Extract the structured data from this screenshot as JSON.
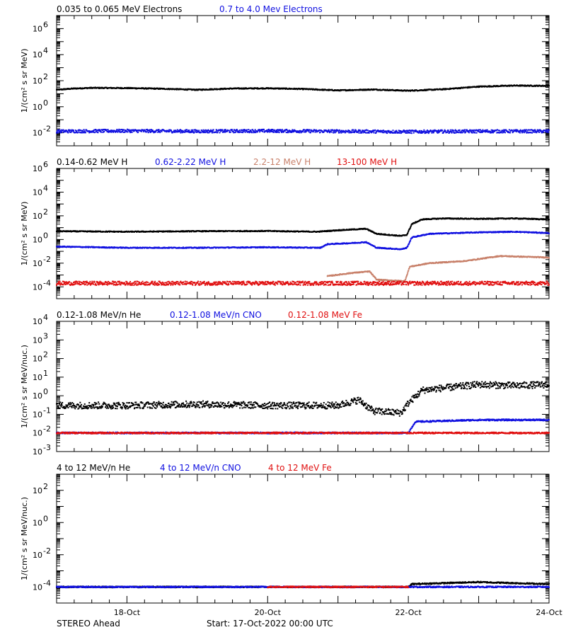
{
  "footer": {
    "spacecraft": "STEREO Ahead",
    "start": "Start: 17-Oct-2022 00:00 UTC"
  },
  "colors": {
    "black": "#000000",
    "blue": "#1010e0",
    "tan": "#c8806a",
    "red": "#e01010"
  },
  "chart_data": [
    {
      "type": "scatter",
      "panel": "electrons",
      "ylabel": "1/(cm² s sr MeV)",
      "ylog": true,
      "ylim": [
        0.001,
        10000000
      ],
      "yticks": [
        {
          "exp": "-2",
          "value": 0.01
        },
        {
          "exp": "0",
          "value": 1
        },
        {
          "exp": "2",
          "value": 100
        },
        {
          "exp": "4",
          "value": 10000
        },
        {
          "exp": "6",
          "value": 1000000
        }
      ],
      "xlim": [
        0,
        7
      ],
      "xticks": [
        {
          "label": "18-Oct",
          "value": 1
        },
        {
          "label": "20-Oct",
          "value": 3
        },
        {
          "label": "22-Oct",
          "value": 5
        },
        {
          "label": "24-Oct",
          "value": 7
        }
      ],
      "series": [
        {
          "name": "0.035 to 0.065 MeV Electrons",
          "color": "#000000",
          "points": [
            [
              0,
              20
            ],
            [
              0.25,
              25
            ],
            [
              0.5,
              28
            ],
            [
              1,
              27
            ],
            [
              1.5,
              24
            ],
            [
              2,
              20
            ],
            [
              2.5,
              25
            ],
            [
              3,
              26
            ],
            [
              3.5,
              23
            ],
            [
              4,
              18
            ],
            [
              4.5,
              21
            ],
            [
              5,
              17
            ],
            [
              5.5,
              22
            ],
            [
              6,
              35
            ],
            [
              6.5,
              42
            ],
            [
              7,
              40
            ]
          ]
        },
        {
          "name": "0.7 to 4.0 Mev Electrons",
          "color": "#1010e0",
          "points": [
            [
              0,
              0.013
            ],
            [
              1,
              0.014
            ],
            [
              2,
              0.013
            ],
            [
              3,
              0.014
            ],
            [
              4,
              0.013
            ],
            [
              5,
              0.012
            ],
            [
              6,
              0.013
            ],
            [
              7,
              0.013
            ]
          ]
        }
      ]
    },
    {
      "type": "scatter",
      "panel": "protons",
      "ylabel": "1/(cm² s sr MeV)",
      "ylog": true,
      "ylim": [
        1e-05,
        1000000
      ],
      "yticks": [
        {
          "exp": "-4",
          "value": 0.0001
        },
        {
          "exp": "-2",
          "value": 0.01
        },
        {
          "exp": "0",
          "value": 1
        },
        {
          "exp": "2",
          "value": 100
        },
        {
          "exp": "4",
          "value": 10000
        },
        {
          "exp": "6",
          "value": 1000000
        }
      ],
      "xlim": [
        0,
        7
      ],
      "xticks": [
        {
          "label": "18-Oct",
          "value": 1
        },
        {
          "label": "20-Oct",
          "value": 3
        },
        {
          "label": "22-Oct",
          "value": 5
        },
        {
          "label": "24-Oct",
          "value": 7
        }
      ],
      "series": [
        {
          "name": "0.14-0.62 MeV H",
          "color": "#000000",
          "points": [
            [
              0,
              5
            ],
            [
              1,
              4.5
            ],
            [
              2,
              5
            ],
            [
              3,
              5.2
            ],
            [
              3.7,
              4.5
            ],
            [
              4,
              6
            ],
            [
              4.4,
              8
            ],
            [
              4.55,
              3
            ],
            [
              4.9,
              2
            ],
            [
              4.98,
              2.5
            ],
            [
              5.05,
              20
            ],
            [
              5.2,
              50
            ],
            [
              5.5,
              60
            ],
            [
              6,
              55
            ],
            [
              6.5,
              60
            ],
            [
              7,
              50
            ]
          ]
        },
        {
          "name": "0.62-2.22 MeV H",
          "color": "#1010e0",
          "points": [
            [
              0,
              0.25
            ],
            [
              1,
              0.2
            ],
            [
              2,
              0.2
            ],
            [
              3,
              0.22
            ],
            [
              3.75,
              0.2
            ],
            [
              3.85,
              0.4
            ],
            [
              4.2,
              0.5
            ],
            [
              4.4,
              0.6
            ],
            [
              4.55,
              0.2
            ],
            [
              4.9,
              0.15
            ],
            [
              4.98,
              0.2
            ],
            [
              5.05,
              1.5
            ],
            [
              5.3,
              3
            ],
            [
              6,
              4
            ],
            [
              6.5,
              4.5
            ],
            [
              7,
              3.5
            ]
          ]
        },
        {
          "name": "2.2-12 MeV H",
          "color": "#c8806a",
          "points": [
            [
              3.85,
              0.0008
            ],
            [
              4.2,
              0.0015
            ],
            [
              4.45,
              0.002
            ],
            [
              4.55,
              0.0004
            ],
            [
              4.95,
              0.0003
            ],
            [
              5.02,
              0.005
            ],
            [
              5.3,
              0.01
            ],
            [
              5.8,
              0.015
            ],
            [
              6.3,
              0.04
            ],
            [
              7,
              0.03
            ]
          ]
        },
        {
          "name": "13-100 MeV H",
          "color": "#e01010",
          "points": [
            [
              0,
              0.0002
            ],
            [
              1,
              0.0002
            ],
            [
              2,
              0.0002
            ],
            [
              3,
              0.0002
            ],
            [
              4,
              0.0002
            ],
            [
              5,
              0.0002
            ],
            [
              6,
              0.0002
            ],
            [
              7,
              0.0002
            ]
          ]
        }
      ]
    },
    {
      "type": "scatter",
      "panel": "heavy-ions-low",
      "ylabel": "1/(cm² s sr MeV/nuc.)",
      "ylog": true,
      "ylim": [
        0.001,
        10000
      ],
      "yticks": [
        {
          "exp": "-3",
          "value": 0.001
        },
        {
          "exp": "-2",
          "value": 0.01
        },
        {
          "exp": "-1",
          "value": 0.1
        },
        {
          "exp": "0",
          "value": 1
        },
        {
          "exp": "1",
          "value": 10
        },
        {
          "exp": "2",
          "value": 100
        },
        {
          "exp": "3",
          "value": 1000
        },
        {
          "exp": "4",
          "value": 10000
        }
      ],
      "xlim": [
        0,
        7
      ],
      "xticks": [
        {
          "label": "18-Oct",
          "value": 1
        },
        {
          "label": "20-Oct",
          "value": 3
        },
        {
          "label": "22-Oct",
          "value": 5
        },
        {
          "label": "24-Oct",
          "value": 7
        }
      ],
      "series": [
        {
          "name": "0.12-1.08 MeV/n He",
          "color": "#000000",
          "points": [
            [
              0,
              0.3
            ],
            [
              1,
              0.3
            ],
            [
              2,
              0.35
            ],
            [
              3,
              0.3
            ],
            [
              4,
              0.3
            ],
            [
              4.3,
              0.6
            ],
            [
              4.5,
              0.15
            ],
            [
              4.9,
              0.12
            ],
            [
              5.0,
              0.4
            ],
            [
              5.2,
              2
            ],
            [
              6,
              4
            ],
            [
              6.5,
              3.5
            ],
            [
              7,
              4
            ]
          ]
        },
        {
          "name": "0.12-1.08 MeV/n CNO",
          "color": "#1010e0",
          "points": [
            [
              0,
              0.01
            ],
            [
              1,
              0.01
            ],
            [
              2,
              0.01
            ],
            [
              3,
              0.01
            ],
            [
              4,
              0.01
            ],
            [
              5,
              0.01
            ],
            [
              5.1,
              0.04
            ],
            [
              6,
              0.05
            ],
            [
              7,
              0.05
            ]
          ]
        },
        {
          "name": "0.12-1.08 MeV Fe",
          "color": "#e01010",
          "points": [
            [
              0,
              0.01
            ],
            [
              1,
              0.01
            ],
            [
              2,
              0.01
            ],
            [
              3,
              0.01
            ],
            [
              4,
              0.01
            ],
            [
              5,
              0.01
            ],
            [
              6,
              0.01
            ],
            [
              7,
              0.01
            ]
          ]
        }
      ]
    },
    {
      "type": "scatter",
      "panel": "heavy-ions-high",
      "ylabel": "1/(cm² s sr MeV/nuc.)",
      "ylog": true,
      "ylim": [
        1e-05,
        1000
      ],
      "yticks": [
        {
          "exp": "-4",
          "value": 0.0001
        },
        {
          "exp": "-2",
          "value": 0.01
        },
        {
          "exp": "0",
          "value": 1
        },
        {
          "exp": "2",
          "value": 100
        }
      ],
      "xlim": [
        0,
        7
      ],
      "xticks": [
        {
          "label": "18-Oct",
          "value": 1
        },
        {
          "label": "20-Oct",
          "value": 3
        },
        {
          "label": "22-Oct",
          "value": 5
        },
        {
          "label": "24-Oct",
          "value": 7
        }
      ],
      "series": [
        {
          "name": "4 to 12 MeV/n He",
          "color": "#000000",
          "points": [
            [
              0,
              0.0001
            ],
            [
              1,
              0.0001
            ],
            [
              2,
              0.0001
            ],
            [
              3,
              0.0001
            ],
            [
              4,
              0.0001
            ],
            [
              5,
              0.0001
            ],
            [
              5.05,
              0.00015
            ],
            [
              6,
              0.0002
            ],
            [
              7,
              0.00015
            ]
          ]
        },
        {
          "name": "4 to 12 MeV/n CNO",
          "color": "#1010e0",
          "points": [
            [
              0,
              0.0001
            ],
            [
              2,
              0.0001
            ],
            [
              4,
              0.0001
            ],
            [
              6,
              0.0001
            ],
            [
              7,
              0.0001
            ]
          ]
        },
        {
          "name": "4 to 12 MeV Fe",
          "color": "#e01010",
          "points": [
            [
              3,
              0.0001
            ],
            [
              5,
              0.0001
            ]
          ]
        }
      ]
    }
  ]
}
